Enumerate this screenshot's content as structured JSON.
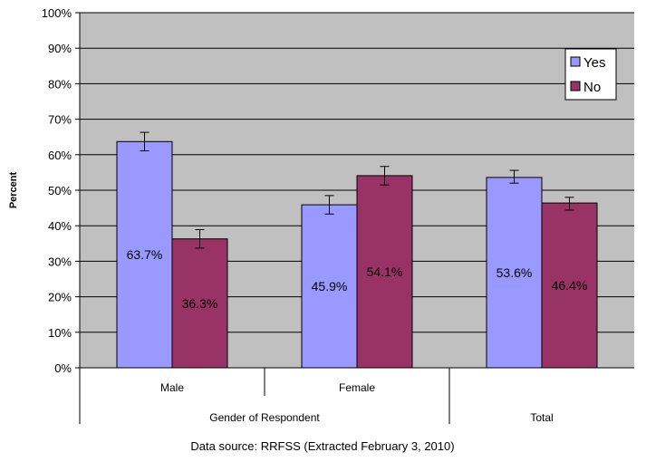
{
  "chart_data": {
    "type": "bar",
    "title": "",
    "ylabel": "Percent",
    "xlabel": "Gender of Respondent",
    "ylim": [
      0,
      100
    ],
    "yticks": [
      0,
      10,
      20,
      30,
      40,
      50,
      60,
      70,
      80,
      90,
      100
    ],
    "ytick_labels": [
      "0%",
      "10%",
      "20%",
      "30%",
      "40%",
      "50%",
      "60%",
      "70%",
      "80%",
      "90%",
      "100%"
    ],
    "categories": [
      "Male",
      "Female",
      "Total"
    ],
    "group_labels": [
      "Gender of Respondent",
      "Total"
    ],
    "series": [
      {
        "name": "Yes",
        "color": "#9999ff",
        "values": [
          63.7,
          45.9,
          53.6
        ],
        "error_low": [
          61.1,
          43.3,
          52.0
        ],
        "error_high": [
          66.3,
          48.5,
          55.6
        ],
        "labels": [
          "63.7%",
          "45.9%",
          "53.6%"
        ]
      },
      {
        "name": "No",
        "color": "#993366",
        "values": [
          36.3,
          54.1,
          46.4
        ],
        "error_low": [
          33.7,
          51.5,
          44.4
        ],
        "error_high": [
          38.9,
          56.7,
          48.0
        ],
        "labels": [
          "36.3%",
          "54.1%",
          "46.4%"
        ]
      }
    ],
    "legend_position": "top-right",
    "grid": true,
    "plot_background": "#c0c0c0"
  },
  "footer": {
    "source": "Data source: RRFSS (Extracted February 3, 2010)"
  }
}
